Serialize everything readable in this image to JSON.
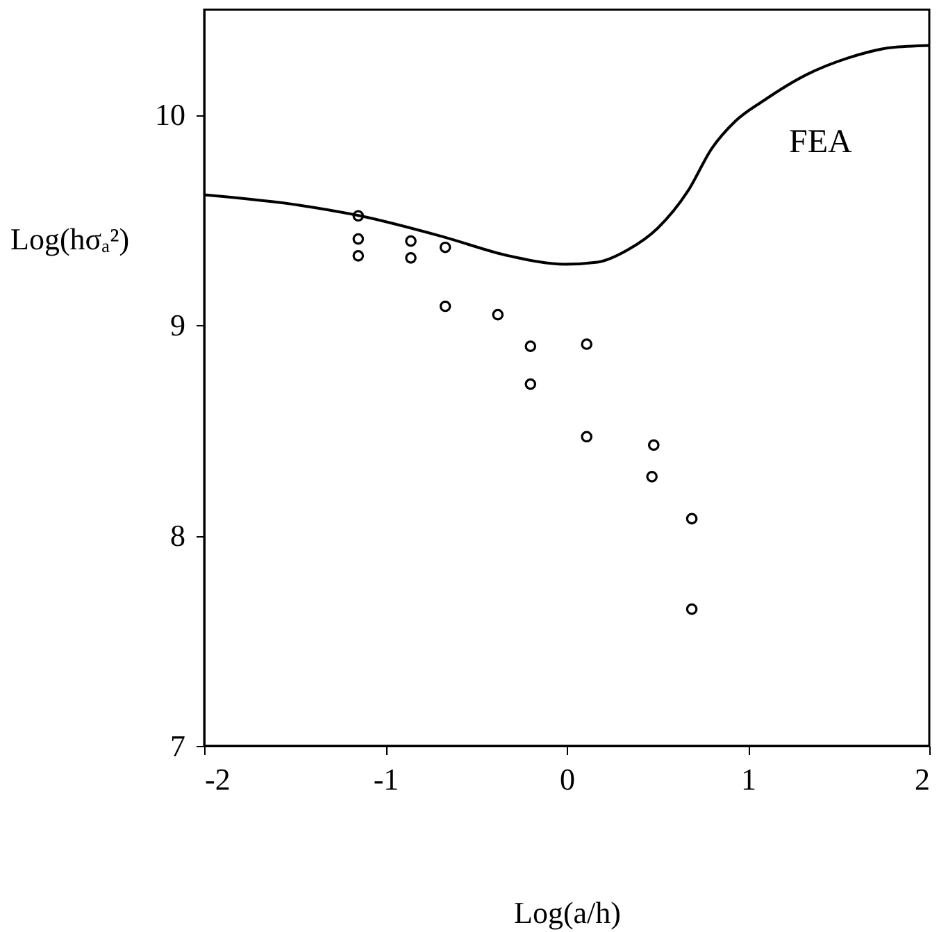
{
  "chart_data": {
    "type": "scatter",
    "xlabel": "Log(a/h)",
    "ylabel": "Log(hσₐ²)",
    "xlim": [
      -2,
      2
    ],
    "xticks": [
      -2,
      -1,
      0,
      1,
      2
    ],
    "ylim": [
      7,
      10.5
    ],
    "yticks": [
      7,
      8,
      9,
      10
    ],
    "grid": false,
    "series": [
      {
        "color": "#000000",
        "marker": "circle",
        "x": [
          -1.15,
          -1.15,
          -1.15,
          -0.86,
          -0.86,
          -0.67,
          -0.67,
          -0.38,
          -0.2,
          -0.2,
          0.11,
          0.11,
          0.48,
          0.47,
          0.69,
          0.69
        ],
        "values": [
          9.52,
          9.41,
          9.33,
          9.4,
          9.32,
          9.37,
          9.09,
          9.05,
          8.9,
          8.72,
          8.91,
          8.47,
          8.43,
          8.28,
          8.08,
          7.65
        ]
      },
      {
        "type": "line",
        "color": "#000000",
        "marker": "none",
        "line_style": "solid",
        "x": [
          -2,
          -1.47,
          -1.14,
          -0.68,
          -0.32,
          -0.01,
          0.17,
          0.34,
          0.5,
          0.67,
          0.8,
          0.93,
          1.09,
          1.32,
          1.55,
          1.79,
          2.0
        ],
        "values": [
          9.62,
          9.57,
          9.52,
          9.42,
          9.33,
          9.29,
          9.3,
          9.36,
          9.46,
          9.64,
          9.84,
          9.97,
          10.07,
          10.19,
          10.27,
          10.32,
          10.33
        ]
      }
    ],
    "annotations": [
      "FEA"
    ]
  }
}
